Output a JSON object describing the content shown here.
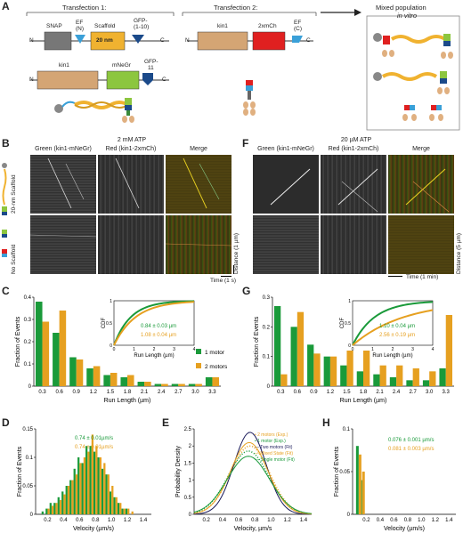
{
  "panels": {
    "A": "A",
    "B": "B",
    "C": "C",
    "D": "D",
    "E": "E",
    "F": "F",
    "G": "G",
    "H": "H"
  },
  "panelA": {
    "transfection1": "Transfection 1:",
    "transfection2": "Transfection 2:",
    "mixed": "Mixed population",
    "mixed2": "in vitro",
    "snap": "SNAP",
    "efN": "EF",
    "efN2": "(N)",
    "scaffold": "Scaffold",
    "nm20": "20 nm",
    "gfp110": "GFP-",
    "gfp110b": "(1-10)",
    "kin1": "kin1",
    "mnegr": "mNeGr",
    "gfp11": "GFP-",
    "gfp11b": "11",
    "kin1b": "kin1",
    "mch": "2xmCh",
    "efC": "EF",
    "efC2": "(C)",
    "n": "N",
    "c": "C"
  },
  "panelB": {
    "title": "2 mM ATP",
    "green": "Green (kin1-mNeGr)",
    "red": "Red (kin1-2xmCh)",
    "merge": "Merge",
    "scaffold20": "20-nm Scaffold",
    "noscaffold": "No Scaffold",
    "distance": "Distance (1 µm)",
    "time": "Time (1 s)"
  },
  "panelF": {
    "title": "20 µM ATP",
    "green": "Green (kin1-mNeGr)",
    "red": "Red (kin1-2xmCh)",
    "merge": "Merge",
    "distance": "Distance (5 µm)",
    "time": "Time (1 min)"
  },
  "colors": {
    "green": "#1a9a3a",
    "orange": "#e6a020",
    "navy": "#1a1a5a"
  },
  "chart_data": [
    {
      "id": "C",
      "type": "bar",
      "categories": [
        "0.3",
        "0.6",
        "0.9",
        "1.2",
        "1.5",
        "1.8",
        "2.1",
        "2.4",
        "2.7",
        "3.0",
        "3.3"
      ],
      "series": [
        {
          "name": "1 motor",
          "values": [
            0.38,
            0.24,
            0.13,
            0.08,
            0.05,
            0.04,
            0.02,
            0.01,
            0.01,
            0.01,
            0.04
          ]
        },
        {
          "name": "2 motors",
          "values": [
            0.29,
            0.34,
            0.12,
            0.09,
            0.06,
            0.05,
            0.02,
            0.01,
            0.01,
            0.01,
            0.04
          ]
        }
      ],
      "xlabel": "Run Length (µm)",
      "ylabel": "Fraction of Events",
      "yticks": [
        "0",
        "0.1",
        "0.2",
        "0.3",
        "0.4"
      ],
      "ylim": [
        0,
        0.4
      ],
      "inset": {
        "xlabel": "Run Length (µm)",
        "ylabel": "CDF",
        "xticks": [
          "0",
          "1",
          "2",
          "3",
          "4"
        ],
        "yticks": [
          "0",
          "0.5",
          "1"
        ],
        "g": "0.84 ± 0.03 µm",
        "o": "1.08 ± 0.04 µm"
      }
    },
    {
      "id": "G",
      "type": "bar",
      "categories": [
        "0.3",
        "0.6",
        "0.9",
        "1.2",
        "1.5",
        "1.8",
        "2.1",
        "2.4",
        "2.7",
        "3.0",
        "3.3"
      ],
      "series": [
        {
          "name": "1 motor",
          "values": [
            0.27,
            0.2,
            0.14,
            0.1,
            0.07,
            0.05,
            0.04,
            0.03,
            0.02,
            0.02,
            0.06
          ]
        },
        {
          "name": "2 motors",
          "values": [
            0.04,
            0.25,
            0.11,
            0.1,
            0.12,
            0.12,
            0.07,
            0.07,
            0.06,
            0.05,
            0.24
          ]
        }
      ],
      "xlabel": "Run Length (µm)",
      "ylabel": "Fraction of Events",
      "yticks": [
        "0",
        "0.1",
        "0.2",
        "0.3"
      ],
      "ylim": [
        0,
        0.3
      ],
      "inset": {
        "xlabel": "Run Length (µm)",
        "ylabel": "CDF",
        "xticks": [
          "0",
          "1",
          "2",
          "3",
          "4"
        ],
        "yticks": [
          "0",
          "0.5",
          "1"
        ],
        "g": "1.10 ± 0.04 µm",
        "o": "2.56 ± 0.19 µm"
      }
    },
    {
      "id": "D",
      "type": "bar",
      "x": [
        0.1,
        0.15,
        0.2,
        0.25,
        0.3,
        0.35,
        0.4,
        0.45,
        0.5,
        0.55,
        0.6,
        0.65,
        0.7,
        0.75,
        0.8,
        0.85,
        0.9,
        0.95,
        1.0,
        1.05,
        1.1,
        1.15,
        1.2,
        1.25,
        1.3
      ],
      "series": [
        {
          "name": "1 motor",
          "values": [
            0.0,
            0.005,
            0.01,
            0.02,
            0.02,
            0.03,
            0.04,
            0.05,
            0.06,
            0.08,
            0.1,
            0.09,
            0.12,
            0.12,
            0.11,
            0.1,
            0.08,
            0.07,
            0.04,
            0.03,
            0.02,
            0.01,
            0.01,
            0.0,
            0.0
          ]
        },
        {
          "name": "2 motors",
          "values": [
            0.0,
            0.0,
            0.01,
            0.015,
            0.02,
            0.025,
            0.035,
            0.05,
            0.06,
            0.07,
            0.09,
            0.1,
            0.11,
            0.14,
            0.12,
            0.1,
            0.09,
            0.07,
            0.05,
            0.03,
            0.02,
            0.01,
            0.01,
            0.005,
            0.0
          ]
        }
      ],
      "xlabel": "Velocity (µm/s)",
      "ylabel": "Fraction of Events",
      "xticks": [
        "0.2",
        "0.4",
        "0.6",
        "0.8",
        "1.0",
        "1.2",
        "1.4"
      ],
      "yticks": [
        "0",
        "0.05",
        "0.1",
        "0.15"
      ],
      "ylim": [
        0,
        0.15
      ],
      "g": "0.74 ± 0.01µm/s",
      "o": "0.74 ± 0.01µm/s"
    },
    {
      "id": "E",
      "type": "line",
      "series": [
        {
          "name": "2 motors (Exp.)",
          "mu": 0.74,
          "sigma": 0.24,
          "peak": 2.0
        },
        {
          "name": "1 motor (Exp.)",
          "mu": 0.72,
          "sigma": 0.25,
          "peak": 1.85
        },
        {
          "name": "Two motors (Fit)",
          "mu": 0.74,
          "sigma": 0.2,
          "peak": 2.4
        },
        {
          "name": "Mixed State (Fit)",
          "mu": 0.73,
          "sigma": 0.23,
          "peak": 2.1
        },
        {
          "name": "Single motor (Fit)",
          "mu": 0.72,
          "sigma": 0.26,
          "peak": 1.7
        }
      ],
      "xlabel": "Velocity, µm/s",
      "ylabel": "Probability Density",
      "xticks": [
        "0.2",
        "0.4",
        "0.6",
        "0.8",
        "1.0",
        "1.2",
        "1.4"
      ],
      "yticks": [
        "0",
        "0.5",
        "1",
        "1.5",
        "2",
        "2.5"
      ],
      "ylim": [
        0,
        2.5
      ]
    },
    {
      "id": "H",
      "type": "bar",
      "x": [
        0.05,
        0.1
      ],
      "series": [
        {
          "name": "1 motor",
          "values": [
            0.08,
            0.04
          ]
        },
        {
          "name": "2 motors",
          "values": [
            0.07,
            0.05
          ]
        }
      ],
      "xlabel": "Velocity (µm/s)",
      "ylabel": "Fraction of Events",
      "xticks": [
        "0.2",
        "0.4",
        "0.6",
        "0.8",
        "1.0",
        "1.2",
        "1.4"
      ],
      "yticks": [
        "0",
        "0.05",
        "0.1"
      ],
      "ylim": [
        0,
        0.1
      ],
      "g": "0.076 ± 0.001 µm/s",
      "o": "0.081 ± 0.003 µm/s"
    }
  ]
}
